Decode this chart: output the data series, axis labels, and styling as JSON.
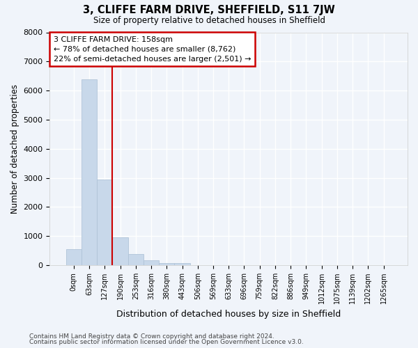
{
  "title1": "3, CLIFFE FARM DRIVE, SHEFFIELD, S11 7JW",
  "title2": "Size of property relative to detached houses in Sheffield",
  "xlabel": "Distribution of detached houses by size in Sheffield",
  "ylabel": "Number of detached properties",
  "bar_labels": [
    "0sqm",
    "63sqm",
    "127sqm",
    "190sqm",
    "253sqm",
    "316sqm",
    "380sqm",
    "443sqm",
    "506sqm",
    "569sqm",
    "633sqm",
    "696sqm",
    "759sqm",
    "822sqm",
    "886sqm",
    "949sqm",
    "1012sqm",
    "1075sqm",
    "1139sqm",
    "1202sqm",
    "1265sqm"
  ],
  "bar_heights": [
    550,
    6380,
    2950,
    950,
    380,
    170,
    80,
    60,
    0,
    0,
    0,
    0,
    0,
    0,
    0,
    0,
    0,
    0,
    0,
    0,
    0
  ],
  "bar_color": "#c8d8ea",
  "bar_edge_color": "#b0c4d8",
  "property_line_x": 2.5,
  "annotation_line1": "3 CLIFFE FARM DRIVE: 158sqm",
  "annotation_line2": "← 78% of detached houses are smaller (8,762)",
  "annotation_line3": "22% of semi-detached houses are larger (2,501) →",
  "annotation_box_color": "#cc0000",
  "ylim": [
    0,
    8000
  ],
  "yticks": [
    0,
    1000,
    2000,
    3000,
    4000,
    5000,
    6000,
    7000,
    8000
  ],
  "footnote1": "Contains HM Land Registry data © Crown copyright and database right 2024.",
  "footnote2": "Contains public sector information licensed under the Open Government Licence v3.0.",
  "bg_color": "#f0f4fa",
  "plot_bg_color": "#f0f4fa"
}
